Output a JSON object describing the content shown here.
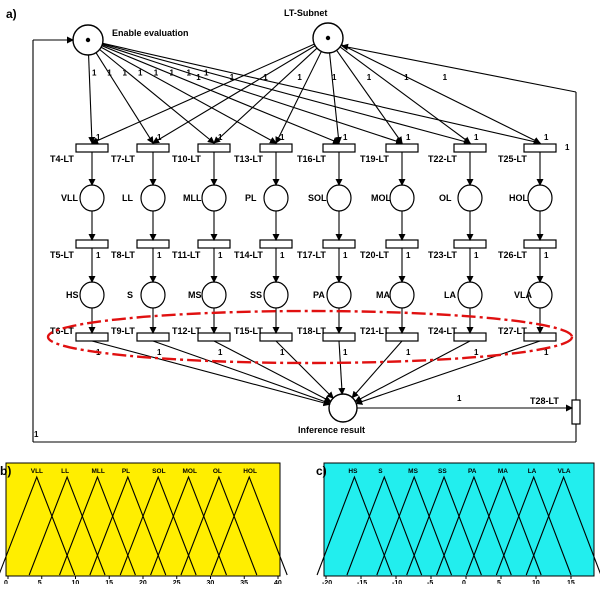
{
  "panel_a": {
    "label": "a)",
    "subnet_title": "LT-Subnet",
    "enable_label": "Enable evaluation",
    "inference_label": "Inference result",
    "final_transition": "T28-LT",
    "final_weight": "1",
    "columns": [
      {
        "t1": "T4-LT",
        "p1": "VLL",
        "t2": "T5-LT",
        "p2": "HS",
        "t3": "T6-LT"
      },
      {
        "t1": "T7-LT",
        "p1": "LL",
        "t2": "T8-LT",
        "p2": "S",
        "t3": "T9-LT"
      },
      {
        "t1": "T10-LT",
        "p1": "MLL",
        "t2": "T11-LT",
        "p2": "MS",
        "t3": "T12-LT"
      },
      {
        "t1": "T13-LT",
        "p1": "PL",
        "t2": "T14-LT",
        "p2": "SS",
        "t3": "T15-LT"
      },
      {
        "t1": "T16-LT",
        "p1": "SOL",
        "t2": "T17-LT",
        "p2": "PA",
        "t3": "T18-LT"
      },
      {
        "t1": "T19-LT",
        "p1": "MOL",
        "t2": "T20-LT",
        "p2": "MA",
        "t3": "T21-LT"
      },
      {
        "t1": "T22-LT",
        "p1": "OL",
        "t2": "T23-LT",
        "p2": "LA",
        "t3": "T24-LT"
      },
      {
        "t1": "T25-LT",
        "p1": "HOL",
        "t2": "T26-LT",
        "p2": "VLA",
        "t3": "T27-LT"
      }
    ],
    "weights": {
      "w1": "1"
    }
  },
  "chart_data": [
    {
      "type": "line",
      "panel_label": "b)",
      "background": "#ffee00",
      "mfs": [
        "VLL",
        "LL",
        "MLL",
        "PL",
        "SOL",
        "MOL",
        "OL",
        "HOL"
      ],
      "xticks": [
        "0",
        "5",
        "10",
        "15",
        "20",
        "25",
        "30",
        "35",
        "40"
      ],
      "xlim": [
        0,
        40
      ],
      "ylim": [
        0,
        1
      ]
    },
    {
      "type": "line",
      "panel_label": "c)",
      "background": "#22eeee",
      "mfs": [
        "HS",
        "S",
        "MS",
        "SS",
        "PA",
        "MA",
        "LA",
        "VLA"
      ],
      "xticks": [
        "-20",
        "-15",
        "-10",
        "-5",
        "0",
        "5",
        "10",
        "15"
      ],
      "xlim": [
        -20,
        20
      ],
      "ylim": [
        0,
        1
      ]
    }
  ]
}
